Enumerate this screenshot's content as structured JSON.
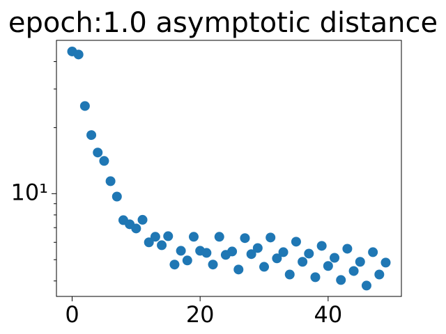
{
  "chart_data": {
    "type": "scatter",
    "title": "epoch:1.0 asymptotic distance",
    "x": [
      0,
      1,
      2,
      3,
      4,
      5,
      6,
      7,
      8,
      9,
      10,
      11,
      12,
      13,
      14,
      15,
      16,
      17,
      18,
      19,
      20,
      21,
      22,
      23,
      24,
      25,
      26,
      27,
      28,
      29,
      30,
      31,
      32,
      33,
      34,
      35,
      36,
      37,
      38,
      39,
      40,
      41,
      42,
      43,
      44,
      45,
      46,
      47,
      48,
      49
    ],
    "values": [
      44.5,
      43.1,
      25.1,
      18.5,
      15.4,
      14.1,
      11.4,
      9.7,
      7.57,
      7.25,
      6.94,
      7.6,
      6.0,
      6.36,
      5.82,
      6.4,
      4.75,
      5.49,
      4.96,
      6.36,
      5.49,
      5.37,
      4.75,
      6.36,
      5.26,
      5.45,
      4.51,
      6.27,
      5.3,
      5.65,
      4.64,
      6.31,
      5.07,
      5.41,
      4.28,
      6.04,
      4.89,
      5.33,
      4.16,
      5.78,
      4.68,
      5.1,
      4.04,
      5.61,
      4.44,
      4.89,
      3.81,
      5.41,
      4.28,
      4.85
    ],
    "color": "#1f77b4",
    "xlim": [
      -2.45,
      51.45
    ],
    "xticks": [
      0,
      20,
      40
    ],
    "ylim": [
      3.4,
      50
    ],
    "yscale": "log",
    "yticks": [
      {
        "value": 10,
        "label": "10¹"
      }
    ],
    "yminorticks": [
      4,
      5,
      6,
      7,
      8,
      9,
      20,
      30,
      40
    ]
  }
}
